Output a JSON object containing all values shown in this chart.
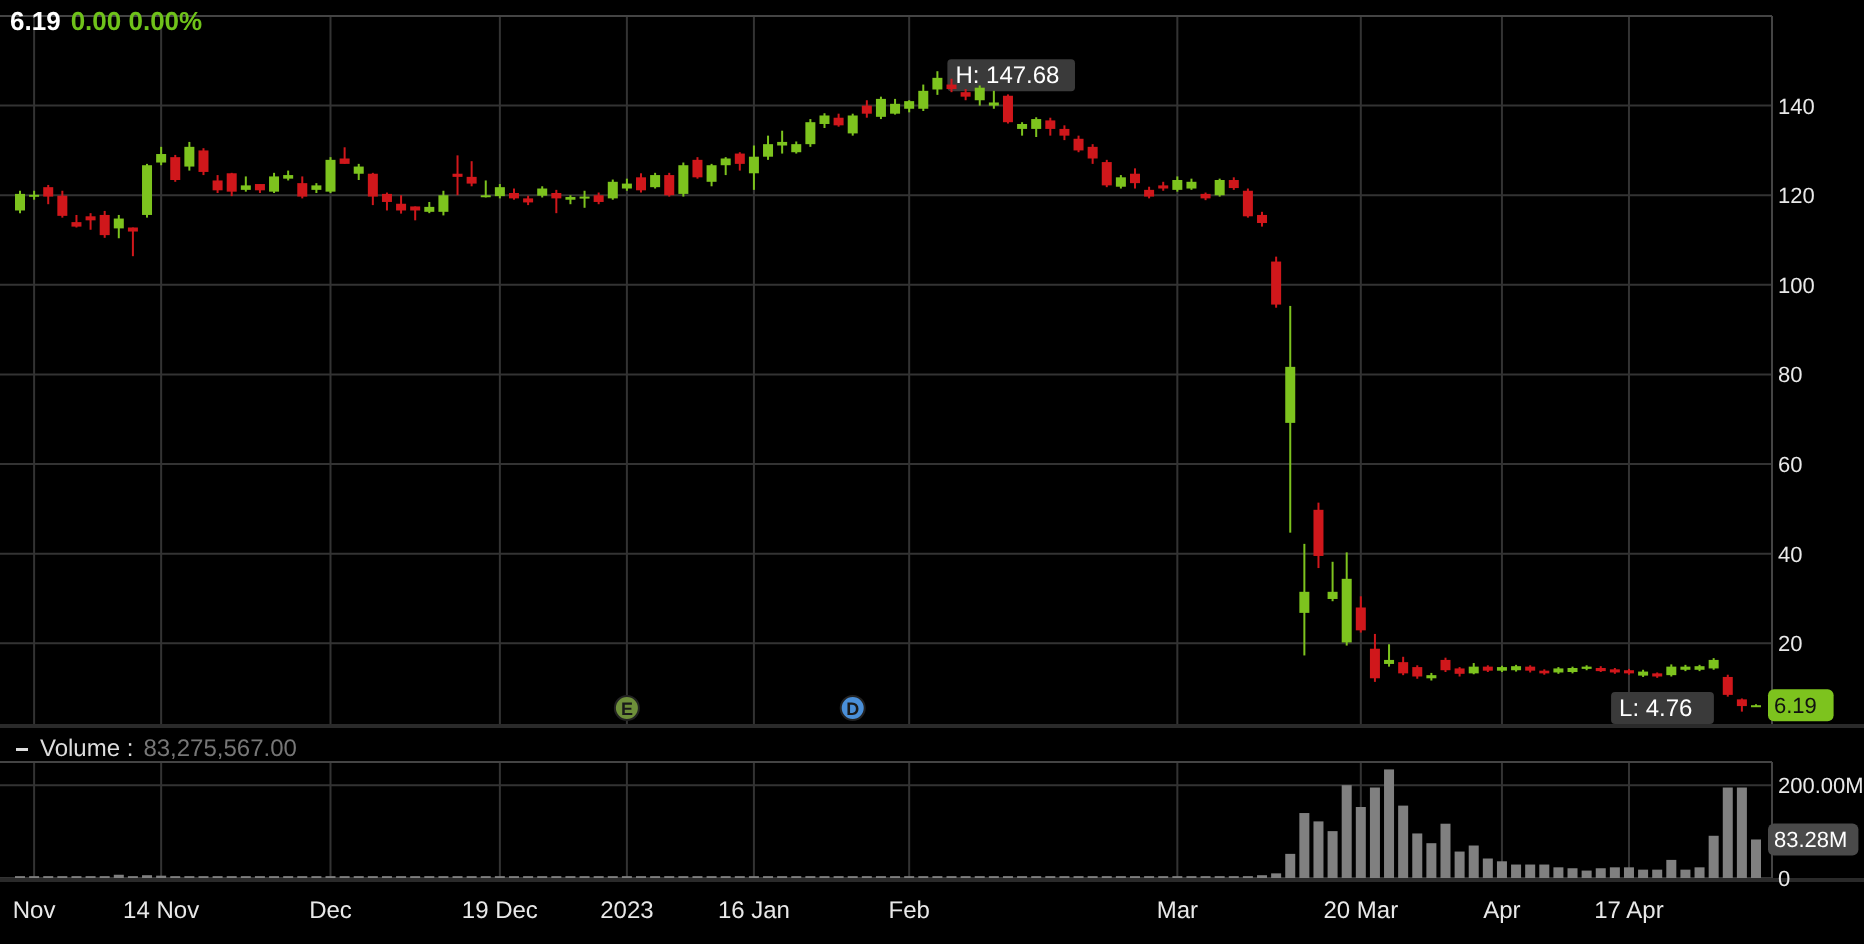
{
  "chart_data": [
    {
      "type": "candlestick",
      "title": "6.19",
      "subtitle": "0.00 0.00%",
      "categories": [
        null,
        null,
        null,
        null,
        null,
        null,
        null,
        null,
        null,
        null,
        null,
        null,
        null,
        null,
        null,
        null,
        null,
        null,
        null,
        null,
        null,
        null,
        null,
        null,
        null,
        null,
        null,
        null,
        null,
        null,
        null,
        null,
        null,
        null,
        null,
        null,
        null,
        null,
        null,
        null,
        null,
        null,
        null,
        null,
        null,
        null,
        null,
        null,
        null,
        null,
        null,
        null,
        null,
        null,
        null,
        null,
        null,
        null,
        null,
        null,
        null,
        null,
        null,
        null,
        null,
        null,
        null,
        null,
        null,
        null,
        null,
        null,
        null,
        null,
        null,
        null,
        null,
        null,
        null,
        null,
        null,
        null,
        null,
        null,
        null,
        null,
        null,
        null,
        null,
        null,
        null,
        null,
        null,
        null,
        null,
        null,
        null,
        null,
        null,
        null,
        null,
        null,
        null,
        null,
        null,
        null,
        null,
        null,
        null,
        null,
        null,
        null,
        null,
        null,
        null,
        null,
        null,
        null,
        null,
        null,
        null,
        null,
        null,
        null
      ],
      "ohlc": [
        [
          116.6,
          121,
          116,
          120.3
        ],
        [
          119.7,
          121,
          119,
          120.1
        ],
        [
          121.8,
          122.3,
          118,
          119.7
        ],
        [
          119.9,
          121,
          115,
          115.4
        ],
        [
          114,
          115.6,
          112.8,
          113
        ],
        [
          115.3,
          116,
          112.3,
          114.4
        ],
        [
          115.6,
          116.5,
          110.5,
          111.1
        ],
        [
          112.6,
          115.6,
          110.4,
          114.8
        ],
        [
          112.8,
          112.8,
          106.4,
          111.9
        ],
        [
          115.6,
          127,
          115,
          126.7
        ],
        [
          127.3,
          130.8,
          126.7,
          129.2
        ],
        [
          128.5,
          129,
          123,
          123.4
        ],
        [
          126.4,
          131.9,
          125.5,
          130.8
        ],
        [
          130,
          130.5,
          124.5,
          125.2
        ],
        [
          123.3,
          124.5,
          120.5,
          121.1
        ],
        [
          124.9,
          125,
          119.8,
          120.8
        ],
        [
          121.2,
          124.2,
          120.8,
          122.2
        ],
        [
          122.5,
          122.5,
          120.5,
          121.1
        ],
        [
          120.8,
          125,
          120.5,
          124.2
        ],
        [
          123.7,
          125.5,
          123.3,
          124.5
        ],
        [
          122.7,
          124.2,
          119.3,
          119.7
        ],
        [
          121.2,
          122.7,
          120.5,
          122.2
        ],
        [
          120.8,
          128.5,
          120.5,
          127.9
        ],
        [
          128.2,
          130.7,
          127,
          127
        ],
        [
          124.8,
          127,
          123.4,
          126.4
        ],
        [
          124.8,
          125,
          117.8,
          119.7
        ],
        [
          120.3,
          120.6,
          116.6,
          118.5
        ],
        [
          118.1,
          120,
          115.9,
          116.6
        ],
        [
          117.5,
          117.5,
          114.4,
          116.6
        ],
        [
          116.3,
          118.5,
          116,
          117.4
        ],
        [
          116.3,
          121,
          115.5,
          120
        ],
        [
          124.8,
          128.9,
          120,
          124.1
        ],
        [
          124.1,
          127.6,
          122,
          122.6
        ],
        [
          119.8,
          123.3,
          119.5,
          120
        ],
        [
          119.8,
          122.5,
          119.3,
          121.8
        ],
        [
          120.5,
          121.5,
          119,
          119.3
        ],
        [
          119.3,
          119.9,
          117.8,
          118.4
        ],
        [
          119.9,
          122,
          119.5,
          121.5
        ],
        [
          120.5,
          121.2,
          116,
          119.3
        ],
        [
          119,
          120,
          118,
          119.6
        ],
        [
          119.3,
          121,
          117.2,
          119.7
        ],
        [
          120,
          120.6,
          118,
          118.5
        ],
        [
          119.3,
          123.5,
          119,
          123
        ],
        [
          121.5,
          123.7,
          121,
          122.6
        ],
        [
          124,
          124.9,
          120.6,
          121.1
        ],
        [
          121.8,
          125,
          121.5,
          124.5
        ],
        [
          124.5,
          125,
          119.7,
          120
        ],
        [
          120.3,
          127.3,
          119.7,
          126.7
        ],
        [
          127.9,
          128.5,
          123.7,
          124
        ],
        [
          123,
          127,
          122,
          126.7
        ],
        [
          126.7,
          128.5,
          124.5,
          128.2
        ],
        [
          129.3,
          129.6,
          125.5,
          127
        ],
        [
          124.9,
          131.1,
          121.2,
          128.6
        ],
        [
          128.6,
          133.3,
          127.9,
          131.4
        ],
        [
          131.1,
          134.4,
          129.3,
          131.9
        ],
        [
          129.6,
          132,
          129.3,
          131.4
        ],
        [
          131.4,
          137,
          130.8,
          136.3
        ],
        [
          135.9,
          138.3,
          135,
          137.8
        ],
        [
          137.3,
          138.2,
          135.3,
          135.6
        ],
        [
          133.8,
          138.2,
          133.3,
          137.8
        ],
        [
          140,
          141.2,
          137.3,
          138.2
        ],
        [
          137.5,
          142,
          137,
          141.5
        ],
        [
          138.2,
          141.5,
          138,
          140.4
        ],
        [
          139.3,
          141.2,
          138.5,
          141
        ],
        [
          139.3,
          144.7,
          138.8,
          143.3
        ],
        [
          143.6,
          147.68,
          142.4,
          146.2
        ],
        [
          144.7,
          146,
          143,
          143.7
        ],
        [
          143,
          143.7,
          141.2,
          142
        ],
        [
          141.2,
          144.5,
          140,
          144
        ],
        [
          140,
          143.3,
          139.3,
          140.7
        ],
        [
          142.2,
          142.5,
          136,
          136.3
        ],
        [
          134.8,
          136.3,
          133.3,
          135.9
        ],
        [
          134.8,
          137.4,
          133,
          137
        ],
        [
          136.7,
          137.3,
          133.3,
          134.8
        ],
        [
          134.8,
          135.6,
          132.3,
          133.3
        ],
        [
          132.6,
          133.3,
          129.6,
          130
        ],
        [
          130.8,
          131.4,
          127,
          128.2
        ],
        [
          127.4,
          127.9,
          121.8,
          122.2
        ],
        [
          121.9,
          124.5,
          121.5,
          124
        ],
        [
          124.8,
          126,
          121.5,
          122.7
        ],
        [
          121.2,
          121.9,
          119.3,
          119.7
        ],
        [
          122.2,
          123,
          121,
          121.5
        ],
        [
          121.2,
          124.2,
          120.8,
          123.4
        ],
        [
          121.5,
          123.7,
          121.2,
          123
        ],
        [
          120.3,
          120.6,
          118.9,
          119.3
        ],
        [
          120,
          123.7,
          119.7,
          123.4
        ],
        [
          123.4,
          124,
          121.2,
          121.6
        ],
        [
          121,
          121.5,
          115,
          115.3
        ],
        [
          115.6,
          116.3,
          113,
          113.8
        ],
        [
          105.2,
          106.3,
          94.9,
          95.6
        ],
        [
          69.2,
          95.3,
          44.7,
          81.7
        ],
        [
          26.8,
          42.2,
          17.3,
          31.5
        ],
        [
          49.8,
          51.4,
          36.8,
          39.5
        ],
        [
          29.9,
          38.2,
          29.4,
          31.5
        ],
        [
          20.2,
          40.3,
          19.5,
          34.4
        ],
        [
          28,
          30.5,
          22.4,
          22.9
        ],
        [
          18.8,
          22.1,
          11.4,
          12.2
        ],
        [
          15.4,
          19.8,
          14.8,
          16.3
        ],
        [
          15.8,
          17,
          12.9,
          13.3
        ],
        [
          14.7,
          15.1,
          12.1,
          12.6
        ],
        [
          12.2,
          13.4,
          11.7,
          12.9
        ],
        [
          16.3,
          16.8,
          13.6,
          14
        ],
        [
          14.4,
          14.7,
          12.6,
          13.2
        ],
        [
          13.3,
          15.6,
          13.1,
          14.8
        ],
        [
          14.8,
          15.1,
          13.6,
          13.9
        ],
        [
          13.9,
          15,
          13.6,
          14.7
        ],
        [
          14,
          15.2,
          13.7,
          14.9
        ],
        [
          14.8,
          15.1,
          13.5,
          13.9
        ],
        [
          13.9,
          14.2,
          13,
          13.3
        ],
        [
          13.5,
          14.7,
          13.2,
          14.4
        ],
        [
          13.6,
          14.8,
          13.3,
          14.5
        ],
        [
          14.3,
          15.1,
          14,
          14.8
        ],
        [
          14.5,
          14.9,
          13.6,
          13.8
        ],
        [
          14.2,
          14.5,
          13.2,
          13.5
        ],
        [
          14,
          14.3,
          13,
          13.3
        ],
        [
          12.8,
          14.1,
          12.5,
          13.7
        ],
        [
          13.3,
          13.5,
          12.3,
          12.6
        ],
        [
          12.9,
          15.3,
          12.6,
          14.8
        ],
        [
          14.1,
          15.2,
          13.8,
          14.8
        ],
        [
          14.1,
          15.2,
          13.8,
          14.9
        ],
        [
          14.4,
          16.7,
          14.1,
          16.3
        ],
        [
          12.5,
          13,
          8.1,
          8.5
        ],
        [
          7.5,
          7.7,
          4.76,
          6
        ],
        [
          6,
          6.4,
          5.9,
          6.19
        ]
      ],
      "ylim": [
        2,
        160
      ],
      "yticks": [
        20,
        40,
        60,
        80,
        100,
        120,
        140
      ],
      "grid": true,
      "tick_labels": "y",
      "annotations": [
        "H: 147.68",
        "L: 4.76",
        "6.19",
        "E",
        "D"
      ]
    },
    {
      "type": "bar",
      "title": "Volume :",
      "subtitle": "83,275,567.00",
      "color": "#808080",
      "categories": [
        null,
        "Nov",
        null,
        null,
        null,
        null,
        null,
        null,
        null,
        null,
        "14 Nov",
        null,
        null,
        null,
        null,
        null,
        null,
        null,
        null,
        null,
        null,
        null,
        "Dec",
        null,
        null,
        null,
        null,
        null,
        null,
        null,
        null,
        null,
        null,
        null,
        "19 Dec",
        null,
        null,
        null,
        null,
        null,
        null,
        null,
        null,
        "2023",
        null,
        null,
        null,
        null,
        null,
        null,
        null,
        null,
        "16 Jan",
        null,
        null,
        null,
        null,
        null,
        null,
        null,
        null,
        null,
        null,
        "Feb",
        null,
        null,
        null,
        null,
        null,
        null,
        null,
        null,
        null,
        null,
        null,
        null,
        null,
        null,
        null,
        null,
        null,
        null,
        "Mar",
        null,
        null,
        null,
        null,
        null,
        null,
        null,
        null,
        null,
        null,
        null,
        null,
        "20 Mar",
        null,
        null,
        null,
        null,
        null,
        null,
        null,
        null,
        null,
        "Apr",
        null,
        null,
        null,
        null,
        null,
        null,
        null,
        null,
        "17 Apr",
        null,
        null,
        null,
        null,
        null,
        null,
        null,
        null,
        null
      ],
      "values": [
        4,
        4,
        4,
        4,
        4,
        4,
        4,
        7,
        4,
        6,
        5,
        4,
        4,
        4,
        4,
        4,
        4,
        4,
        4,
        4,
        4,
        4,
        4,
        4,
        4,
        4,
        4,
        4,
        4,
        4,
        4,
        4,
        4,
        4,
        4,
        4,
        4,
        4,
        4,
        4,
        4,
        4,
        4,
        4,
        4,
        4,
        4,
        4,
        4,
        4,
        4,
        4,
        4,
        4,
        4,
        4,
        4,
        4,
        4,
        4,
        4,
        4,
        4,
        4,
        4,
        4,
        4,
        4,
        4,
        4,
        4,
        4,
        4,
        4,
        4,
        4,
        4,
        4,
        4,
        4,
        4,
        4,
        4,
        4,
        4,
        4,
        4,
        4,
        6,
        10,
        52,
        140,
        122,
        101,
        200,
        153,
        195,
        234,
        156,
        96,
        75,
        117,
        57,
        70,
        42,
        36,
        29,
        29,
        29,
        23,
        21,
        16,
        21,
        23,
        23,
        18,
        18,
        39,
        18,
        23,
        91,
        195,
        195,
        83
      ],
      "ylim": [
        0,
        250
      ],
      "yticks": [
        {
          "value": 0,
          "label": "0"
        },
        {
          "value": 200,
          "label": "200.00M"
        }
      ],
      "grid": true,
      "annotations": [
        "83.28M"
      ]
    }
  ]
}
